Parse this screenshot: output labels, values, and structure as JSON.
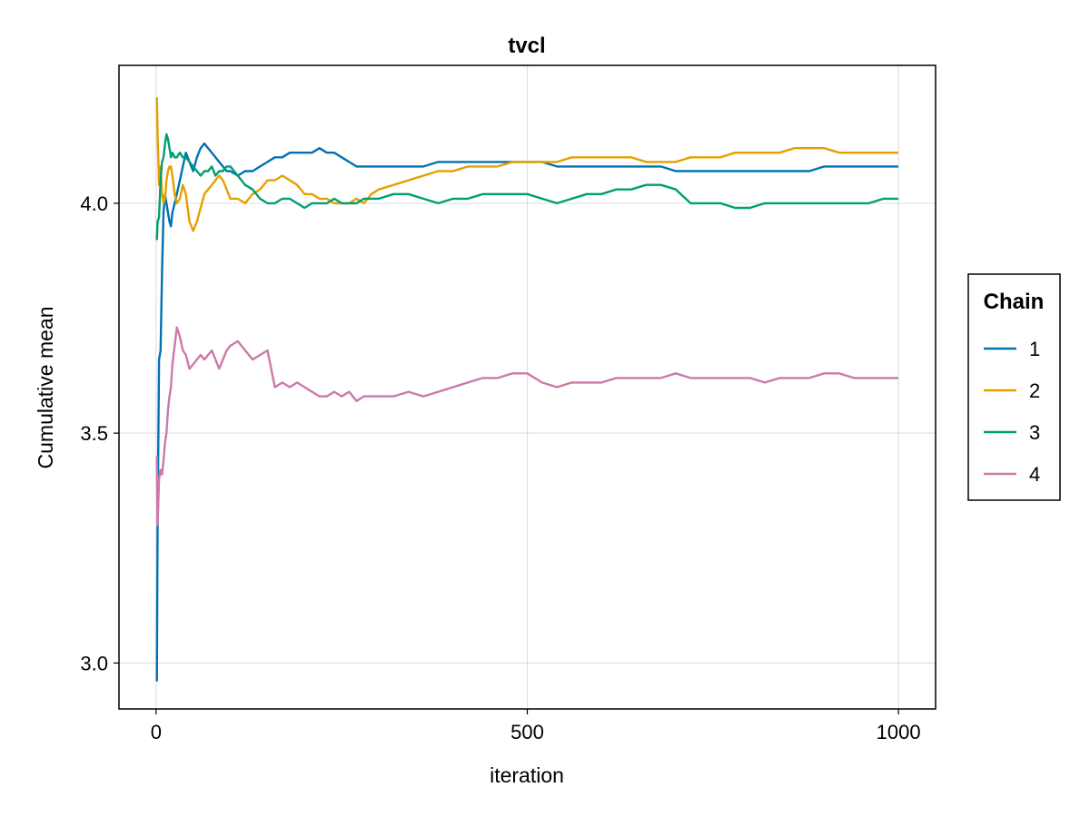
{
  "chart_data": {
    "type": "line",
    "title": "tvcl",
    "xlabel": "iteration",
    "ylabel": "Cumulative mean",
    "xlim": [
      -50,
      1050
    ],
    "ylim": [
      2.9,
      4.3
    ],
    "xticks": [
      0,
      500,
      1000
    ],
    "xtick_labels": [
      "0",
      "500",
      "1000"
    ],
    "yticks": [
      3.0,
      3.5,
      4.0
    ],
    "ytick_labels": [
      "3.0",
      "3.5",
      "4.0"
    ],
    "grid": true,
    "legend": {
      "title": "Chain",
      "placement": "right"
    },
    "series": [
      {
        "name": "1",
        "color": "#0072B2",
        "x": [
          1,
          2,
          4,
          6,
          8,
          10,
          12,
          14,
          16,
          18,
          20,
          22,
          25,
          28,
          32,
          36,
          40,
          45,
          50,
          55,
          60,
          65,
          70,
          75,
          80,
          85,
          90,
          95,
          100,
          110,
          120,
          130,
          140,
          150,
          160,
          170,
          180,
          190,
          200,
          210,
          220,
          230,
          240,
          250,
          260,
          270,
          280,
          290,
          300,
          320,
          340,
          360,
          380,
          400,
          420,
          440,
          460,
          480,
          500,
          520,
          540,
          560,
          580,
          600,
          620,
          640,
          660,
          680,
          700,
          720,
          740,
          760,
          780,
          800,
          820,
          840,
          860,
          880,
          900,
          920,
          940,
          960,
          980,
          1000
        ],
        "y": [
          2.96,
          3.3,
          3.66,
          3.68,
          3.85,
          3.98,
          4.02,
          4.0,
          3.98,
          3.96,
          3.95,
          3.98,
          4.0,
          4.02,
          4.05,
          4.08,
          4.11,
          4.09,
          4.07,
          4.1,
          4.12,
          4.13,
          4.12,
          4.11,
          4.1,
          4.09,
          4.08,
          4.07,
          4.07,
          4.06,
          4.07,
          4.07,
          4.08,
          4.09,
          4.1,
          4.1,
          4.11,
          4.11,
          4.11,
          4.11,
          4.12,
          4.11,
          4.11,
          4.1,
          4.09,
          4.08,
          4.08,
          4.08,
          4.08,
          4.08,
          4.08,
          4.08,
          4.09,
          4.09,
          4.09,
          4.09,
          4.09,
          4.09,
          4.09,
          4.09,
          4.08,
          4.08,
          4.08,
          4.08,
          4.08,
          4.08,
          4.08,
          4.08,
          4.07,
          4.07,
          4.07,
          4.07,
          4.07,
          4.07,
          4.07,
          4.07,
          4.07,
          4.07,
          4.08,
          4.08,
          4.08,
          4.08,
          4.08,
          4.08
        ]
      },
      {
        "name": "2",
        "color": "#E69F00",
        "x": [
          1,
          2,
          4,
          6,
          8,
          10,
          12,
          14,
          16,
          18,
          20,
          22,
          25,
          28,
          32,
          36,
          40,
          45,
          50,
          55,
          60,
          65,
          70,
          75,
          80,
          85,
          90,
          95,
          100,
          110,
          120,
          130,
          140,
          150,
          160,
          170,
          180,
          190,
          200,
          210,
          220,
          230,
          240,
          250,
          260,
          270,
          280,
          290,
          300,
          320,
          340,
          360,
          380,
          400,
          420,
          440,
          460,
          480,
          500,
          520,
          540,
          560,
          580,
          600,
          620,
          640,
          660,
          680,
          700,
          720,
          740,
          760,
          780,
          800,
          820,
          840,
          860,
          880,
          900,
          920,
          940,
          960,
          980,
          1000
        ],
        "y": [
          4.23,
          4.15,
          4.04,
          4.08,
          4.02,
          4.0,
          4.01,
          4.05,
          4.07,
          4.08,
          4.08,
          4.06,
          4.02,
          4.0,
          4.01,
          4.04,
          4.02,
          3.96,
          3.94,
          3.96,
          3.99,
          4.02,
          4.03,
          4.04,
          4.05,
          4.06,
          4.05,
          4.03,
          4.01,
          4.01,
          4.0,
          4.02,
          4.03,
          4.05,
          4.05,
          4.06,
          4.05,
          4.04,
          4.02,
          4.02,
          4.01,
          4.01,
          4.0,
          4.0,
          4.0,
          4.01,
          4.0,
          4.02,
          4.03,
          4.04,
          4.05,
          4.06,
          4.07,
          4.07,
          4.08,
          4.08,
          4.08,
          4.09,
          4.09,
          4.09,
          4.09,
          4.1,
          4.1,
          4.1,
          4.1,
          4.1,
          4.09,
          4.09,
          4.09,
          4.1,
          4.1,
          4.1,
          4.11,
          4.11,
          4.11,
          4.11,
          4.12,
          4.12,
          4.12,
          4.11,
          4.11,
          4.11,
          4.11,
          4.11
        ]
      },
      {
        "name": "3",
        "color": "#009E73",
        "x": [
          1,
          2,
          4,
          6,
          8,
          10,
          12,
          14,
          16,
          18,
          20,
          22,
          25,
          28,
          32,
          36,
          40,
          45,
          50,
          55,
          60,
          65,
          70,
          75,
          80,
          85,
          90,
          95,
          100,
          110,
          120,
          130,
          140,
          150,
          160,
          170,
          180,
          190,
          200,
          210,
          220,
          230,
          240,
          250,
          260,
          270,
          280,
          290,
          300,
          320,
          340,
          360,
          380,
          400,
          420,
          440,
          460,
          480,
          500,
          520,
          540,
          560,
          580,
          600,
          620,
          640,
          660,
          680,
          700,
          720,
          740,
          760,
          780,
          800,
          820,
          840,
          860,
          880,
          900,
          920,
          940,
          960,
          980,
          1000
        ],
        "y": [
          3.92,
          3.96,
          3.97,
          4.05,
          4.09,
          4.1,
          4.13,
          4.15,
          4.14,
          4.12,
          4.1,
          4.11,
          4.1,
          4.1,
          4.11,
          4.1,
          4.1,
          4.09,
          4.08,
          4.07,
          4.06,
          4.07,
          4.07,
          4.08,
          4.06,
          4.07,
          4.07,
          4.08,
          4.08,
          4.06,
          4.04,
          4.03,
          4.01,
          4.0,
          4.0,
          4.01,
          4.01,
          4.0,
          3.99,
          4.0,
          4.0,
          4.0,
          4.01,
          4.0,
          4.0,
          4.0,
          4.01,
          4.01,
          4.01,
          4.02,
          4.02,
          4.01,
          4.0,
          4.01,
          4.01,
          4.02,
          4.02,
          4.02,
          4.02,
          4.01,
          4.0,
          4.01,
          4.02,
          4.02,
          4.03,
          4.03,
          4.04,
          4.04,
          4.03,
          4.0,
          4.0,
          4.0,
          3.99,
          3.99,
          4.0,
          4.0,
          4.0,
          4.0,
          4.0,
          4.0,
          4.0,
          4.0,
          4.01,
          4.01
        ]
      },
      {
        "name": "4",
        "color": "#CC79A7",
        "x": [
          1,
          2,
          4,
          6,
          8,
          10,
          12,
          14,
          16,
          18,
          20,
          22,
          25,
          28,
          32,
          36,
          40,
          45,
          50,
          55,
          60,
          65,
          70,
          75,
          80,
          85,
          90,
          95,
          100,
          110,
          120,
          130,
          140,
          150,
          160,
          170,
          180,
          190,
          200,
          210,
          220,
          230,
          240,
          250,
          260,
          270,
          280,
          290,
          300,
          320,
          340,
          360,
          380,
          400,
          420,
          440,
          460,
          480,
          500,
          520,
          540,
          560,
          580,
          600,
          620,
          640,
          660,
          680,
          700,
          720,
          740,
          760,
          780,
          800,
          820,
          840,
          860,
          880,
          900,
          920,
          940,
          960,
          980,
          1000
        ],
        "y": [
          3.45,
          3.3,
          3.4,
          3.42,
          3.41,
          3.44,
          3.48,
          3.5,
          3.55,
          3.58,
          3.6,
          3.65,
          3.69,
          3.73,
          3.71,
          3.68,
          3.67,
          3.64,
          3.65,
          3.66,
          3.67,
          3.66,
          3.67,
          3.68,
          3.66,
          3.64,
          3.66,
          3.68,
          3.69,
          3.7,
          3.68,
          3.66,
          3.67,
          3.68,
          3.6,
          3.61,
          3.6,
          3.61,
          3.6,
          3.59,
          3.58,
          3.58,
          3.59,
          3.58,
          3.59,
          3.57,
          3.58,
          3.58,
          3.58,
          3.58,
          3.59,
          3.58,
          3.59,
          3.6,
          3.61,
          3.62,
          3.62,
          3.63,
          3.63,
          3.61,
          3.6,
          3.61,
          3.61,
          3.61,
          3.62,
          3.62,
          3.62,
          3.62,
          3.63,
          3.62,
          3.62,
          3.62,
          3.62,
          3.62,
          3.61,
          3.62,
          3.62,
          3.62,
          3.63,
          3.63,
          3.62,
          3.62,
          3.62,
          3.62
        ]
      }
    ]
  }
}
